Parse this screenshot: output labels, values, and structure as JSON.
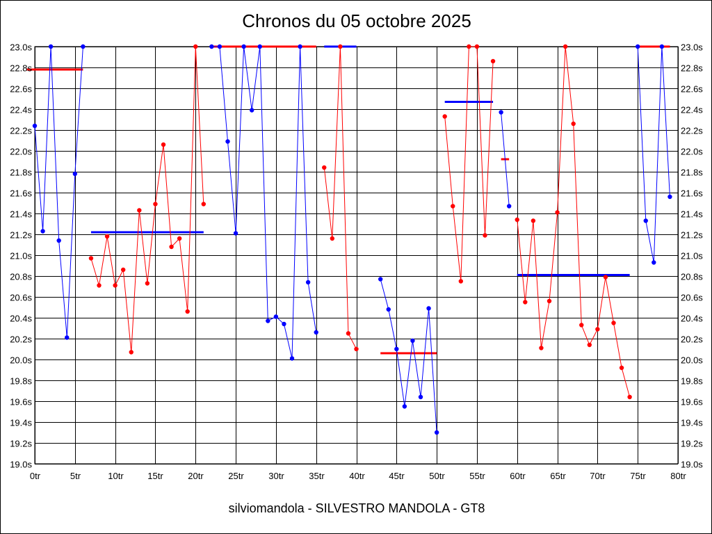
{
  "title": "Chronos du 05 octobre 2025",
  "footer": "silviomandola - SILVESTRO MANDOLA - GT8",
  "colors": {
    "red": "#ff0000",
    "blue": "#0000ff",
    "grid": "#000000",
    "background": "#ffffff"
  },
  "chart_data": {
    "type": "line",
    "title": "Chronos du 05 octobre 2025",
    "xlabel": "",
    "ylabel": "",
    "xlim": [
      0,
      80
    ],
    "ylim": [
      19.0,
      23.0
    ],
    "grid": true,
    "legend": "none",
    "x_ticks": [
      "0tr",
      "5tr",
      "10tr",
      "15tr",
      "20tr",
      "25tr",
      "30tr",
      "35tr",
      "40tr",
      "45tr",
      "50tr",
      "55tr",
      "60tr",
      "65tr",
      "70tr",
      "75tr",
      "80tr"
    ],
    "y_ticks": [
      "19.0s",
      "19.2s",
      "19.4s",
      "19.6s",
      "19.8s",
      "20.0s",
      "20.2s",
      "20.4s",
      "20.6s",
      "20.8s",
      "21.0s",
      "21.2s",
      "21.4s",
      "21.6s",
      "21.8s",
      "22.0s",
      "22.2s",
      "22.4s",
      "22.6s",
      "22.8s",
      "23.0s"
    ],
    "stints": [
      {
        "color": "blue",
        "x": [
          0,
          1,
          2,
          3,
          4,
          5,
          6
        ],
        "y": [
          22.24,
          21.23,
          23.0,
          21.14,
          20.21,
          21.78,
          23.0
        ]
      },
      {
        "color": "red",
        "x": [
          7,
          8,
          9,
          10,
          11,
          12,
          13,
          14,
          15,
          16,
          17,
          18,
          19,
          20,
          21
        ],
        "y": [
          20.97,
          20.71,
          21.18,
          20.71,
          20.86,
          20.07,
          21.43,
          20.73,
          21.49,
          22.06,
          21.08,
          21.16,
          20.46,
          23.0,
          21.49
        ]
      },
      {
        "color": "blue",
        "x": [
          22,
          23,
          24,
          25,
          26,
          27,
          28,
          29,
          30,
          31,
          32,
          33,
          34,
          35
        ],
        "y": [
          23.0,
          23.0,
          22.09,
          21.21,
          23.0,
          22.39,
          23.0,
          20.37,
          20.41,
          20.34,
          20.01,
          23.0,
          20.74,
          20.26
        ]
      },
      {
        "color": "red",
        "x": [
          36,
          37,
          38,
          39,
          40
        ],
        "y": [
          21.84,
          21.16,
          23.0,
          20.25,
          20.1
        ]
      },
      {
        "color": "blue",
        "x": [
          43,
          44,
          45,
          46,
          47,
          48,
          49,
          50
        ],
        "y": [
          20.77,
          20.48,
          20.1,
          19.55,
          20.18,
          19.64,
          20.49,
          19.3
        ]
      },
      {
        "color": "red",
        "x": [
          51,
          52,
          53,
          54,
          55,
          56,
          57
        ],
        "y": [
          22.33,
          21.47,
          20.75,
          23.0,
          23.0,
          21.19,
          22.86
        ]
      },
      {
        "color": "blue",
        "x": [
          58,
          59
        ],
        "y": [
          22.37,
          21.47
        ]
      },
      {
        "color": "red",
        "x": [
          60,
          61,
          62,
          63,
          64,
          65,
          66,
          67,
          68,
          69,
          70,
          71,
          72,
          73,
          74
        ],
        "y": [
          21.34,
          20.55,
          21.33,
          20.11,
          20.56,
          21.41,
          23.0,
          22.26,
          20.33,
          20.14,
          20.29,
          20.79,
          20.35,
          19.92,
          19.64
        ]
      },
      {
        "color": "blue",
        "x": [
          75,
          76,
          77,
          78,
          79
        ],
        "y": [
          23.0,
          21.33,
          20.93,
          23.0,
          21.56
        ]
      }
    ],
    "averages": [
      {
        "color": "red",
        "x": [
          -1,
          6
        ],
        "y": 22.78
      },
      {
        "color": "blue",
        "x": [
          7,
          21
        ],
        "y": 21.22
      },
      {
        "color": "red",
        "x": [
          22,
          35
        ],
        "y": 23.0
      },
      {
        "color": "blue",
        "x": [
          36,
          40
        ],
        "y": 23.0
      },
      {
        "color": "red",
        "x": [
          43,
          50
        ],
        "y": 20.06
      },
      {
        "color": "blue",
        "x": [
          51,
          57
        ],
        "y": 22.47
      },
      {
        "color": "red",
        "x": [
          58,
          59
        ],
        "y": 21.92
      },
      {
        "color": "blue",
        "x": [
          60,
          74
        ],
        "y": 20.81
      },
      {
        "color": "red",
        "x": [
          75,
          79
        ],
        "y": 23.0
      }
    ]
  }
}
